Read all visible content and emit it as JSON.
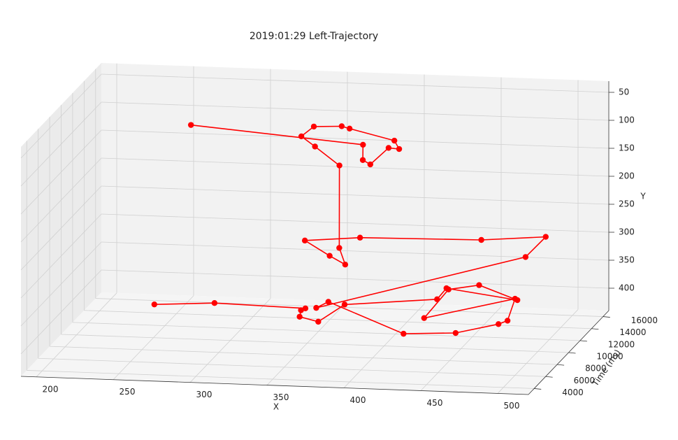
{
  "chart_data": {
    "type": "line3d",
    "title": "2019:01:29 Left-Trajectory",
    "x_label": "X",
    "y_label": "Y",
    "z_label": "Time (ms)",
    "color": "#ff0000",
    "x": [
      273,
      311,
      369,
      365,
      363,
      374,
      390,
      449,
      454,
      499,
      473,
      452,
      435,
      493,
      487,
      480,
      451,
      416,
      366,
      357,
      492,
      504,
      461,
      381,
      344,
      359,
      368,
      363,
      362,
      345,
      335,
      342,
      359,
      363,
      391,
      393,
      385,
      372,
      366,
      365,
      252
    ],
    "y": [
      314,
      311,
      318,
      325,
      340,
      351,
      322,
      310,
      293,
      313,
      292,
      305,
      361,
      324,
      367,
      377,
      399,
      407,
      358,
      373,
      272,
      238,
      251,
      258,
      270,
      299,
      317,
      291,
      147,
      118,
      104,
      89,
      90,
      97,
      119,
      137,
      139,
      173,
      169,
      145,
      124
    ],
    "z": [
      4000,
      4300,
      4600,
      4900,
      5200,
      5500,
      5800,
      6100,
      6400,
      6700,
      7000,
      7300,
      7600,
      7900,
      8200,
      8500,
      8800,
      9100,
      9400,
      9700,
      10000,
      10300,
      10600,
      10900,
      11200,
      11500,
      11800,
      12100,
      12400,
      12700,
      13000,
      13300,
      13600,
      13900,
      14200,
      14500,
      14800,
      15100,
      15400,
      15700,
      16000
    ],
    "xlim": [
      190,
      520
    ],
    "xticks": [
      200,
      250,
      300,
      350,
      400,
      450,
      500
    ],
    "ylim": [
      30,
      440
    ],
    "y_inverted": true,
    "yticks": [
      50,
      100,
      150,
      200,
      250,
      300,
      350,
      400
    ],
    "zlim": [
      3000,
      17000
    ],
    "zticks": [
      4000,
      6000,
      8000,
      10000,
      12000,
      14000,
      16000
    ],
    "grid": true
  }
}
